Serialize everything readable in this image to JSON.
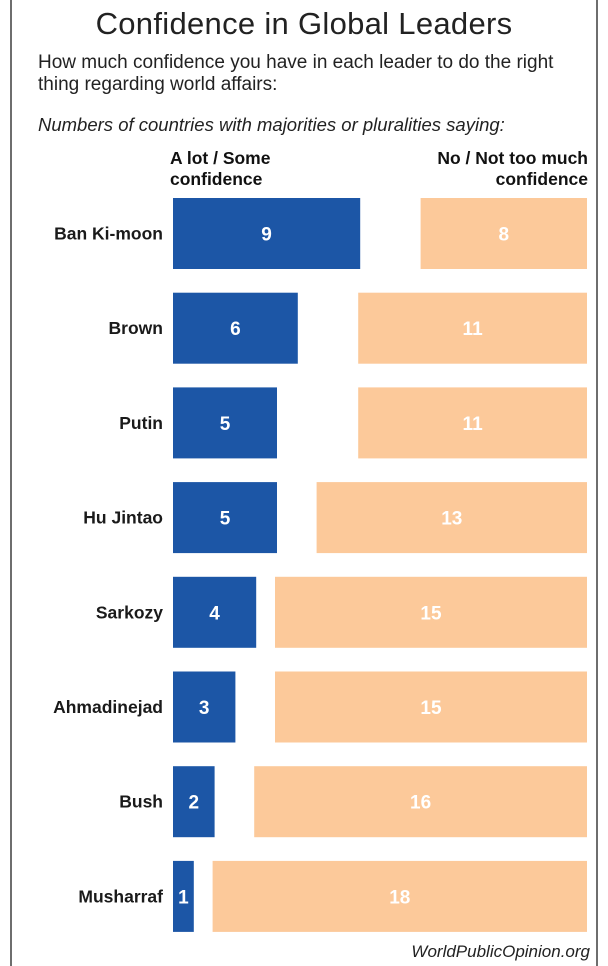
{
  "header": {
    "title": "Confidence in Global Leaders",
    "subtitle": "How much confidence you have in each leader to do the right thing regarding world affairs:",
    "note": "Numbers of countries with majorities or pluralities saying:"
  },
  "columns": {
    "left": "A lot / Some confidence",
    "right": "No / Not too much confidence"
  },
  "footer": {
    "credit": "WorldPublicOpinion.org"
  },
  "colors": {
    "confidence": "#1c56a6",
    "no_confidence": "#fcc99a",
    "bar_label": "#ffffff",
    "text": "#1a1a1a"
  },
  "chart_data": {
    "type": "bar",
    "orientation": "horizontal",
    "stacked": "diverging",
    "title": "Confidence in Global Leaders",
    "categories": [
      "Ban Ki-moon",
      "Brown",
      "Putin",
      "Hu Jintao",
      "Sarkozy",
      "Ahmadinejad",
      "Bush",
      "Musharraf"
    ],
    "series": [
      {
        "name": "A lot / Some confidence",
        "values": [
          9,
          6,
          5,
          5,
          4,
          3,
          2,
          1
        ]
      },
      {
        "name": "No / Not too much confidence",
        "values": [
          8,
          11,
          11,
          13,
          15,
          15,
          16,
          18
        ]
      }
    ],
    "xlim": [
      0,
      19
    ],
    "grid": false,
    "legend": "top"
  }
}
